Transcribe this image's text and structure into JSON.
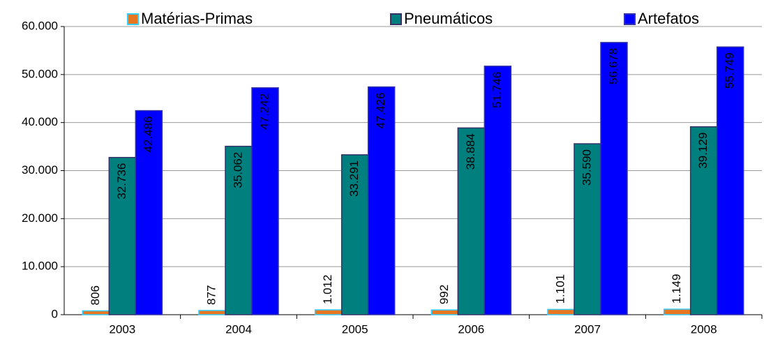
{
  "chart_data": {
    "type": "bar",
    "categories": [
      "2003",
      "2004",
      "2005",
      "2006",
      "2007",
      "2008"
    ],
    "series": [
      {
        "name": "Matérias-Primas",
        "color": "#e87722",
        "values": [
          806,
          877,
          1012,
          992,
          1101,
          1149
        ],
        "value_labels": [
          "806",
          "877",
          "1.012",
          "992",
          "1.101",
          "1.149"
        ]
      },
      {
        "name": "Pneumáticos",
        "color": "#007f7f",
        "values": [
          32736,
          35062,
          33291,
          38884,
          35590,
          39129
        ],
        "value_labels": [
          "32.736",
          "35.062",
          "33.291",
          "38.884",
          "35.590",
          "39.129"
        ]
      },
      {
        "name": "Artefatos",
        "color": "#0000ff",
        "values": [
          42486,
          47242,
          47426,
          51746,
          56678,
          55749
        ],
        "value_labels": [
          "42.486",
          "47.242",
          "47.426",
          "51.746",
          "56.678",
          "55.749"
        ]
      }
    ],
    "ylim": [
      0,
      60000
    ],
    "yticks": [
      0,
      {
        "value": 10000,
        "label": "10.000"
      },
      {
        "value": 20000,
        "label": "20.000"
      },
      {
        "value": 30000,
        "label": "30.000"
      },
      {
        "value": 40000,
        "label": "40.000"
      },
      {
        "value": 50000,
        "label": "50.000"
      },
      {
        "value": 60000,
        "label": "60.000"
      }
    ],
    "grid": true
  }
}
